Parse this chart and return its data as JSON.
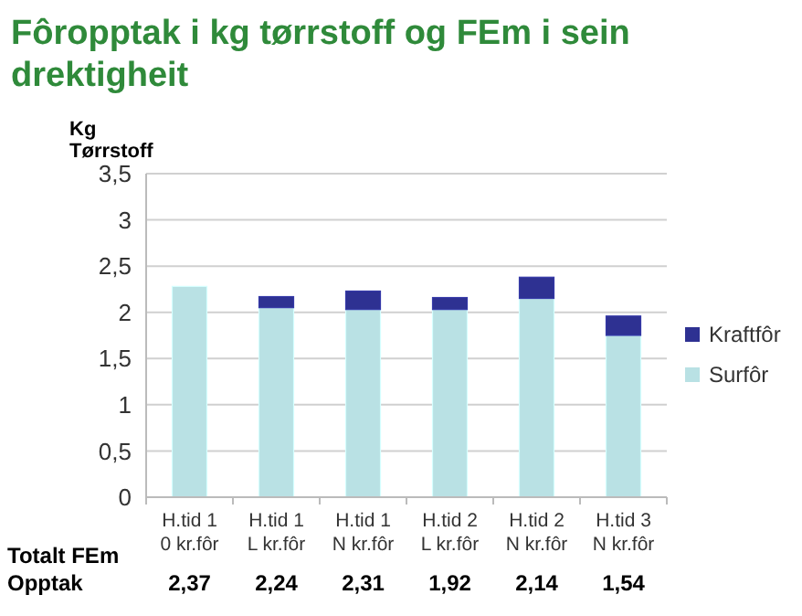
{
  "chart_data": {
    "type": "bar",
    "stacked": true,
    "title": "Fôropptak i kg tørrstoff og FEm i sein drektigheit",
    "ylabel": "Kg\nTørrstoff",
    "categories": [
      "H.tid 1\n0 kr.fôr",
      "H.tid 1\nL kr.fôr",
      "H.tid 1\nN kr.fôr",
      "H.tid 2\nL kr.fôr",
      "H.tid 2\nN kr.fôr",
      "H.tid 3\nN kr.fôr"
    ],
    "series": [
      {
        "name": "Surfôr",
        "color": "#b9e1e4",
        "values": [
          2.28,
          2.05,
          2.03,
          2.03,
          2.15,
          1.75
        ]
      },
      {
        "name": "Kraftfôr",
        "color": "#2e3192",
        "values": [
          0,
          0.12,
          0.2,
          0.13,
          0.23,
          0.21
        ]
      }
    ],
    "ylim": [
      0,
      3.5
    ],
    "yticks": [
      0,
      {
        "value": 0.5,
        "label": "0,5"
      },
      1,
      {
        "value": 1.5,
        "label": "1,5"
      },
      2,
      {
        "value": 2.5,
        "label": "2,5"
      },
      3,
      {
        "value": 3.5,
        "label": "3,5"
      }
    ],
    "grid": "y",
    "legend": "right",
    "annotations": [
      "Totalt FEm\nOpptak",
      "2,37",
      "2,24",
      "2,31",
      "1,92",
      "2,14",
      "1,54"
    ]
  }
}
